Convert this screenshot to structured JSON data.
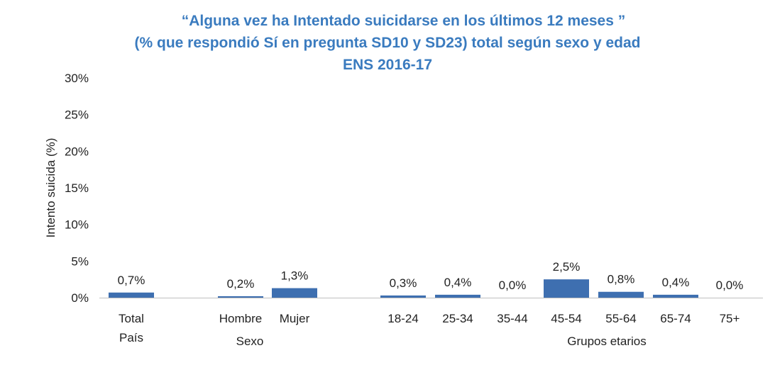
{
  "title_lines": [
    "“Alguna vez ha Intentado suicidarse en los últimos 12 meses ”",
    "(% que respondió Sí en pregunta SD10 y SD23) total según sexo y edad",
    "ENS  2016-17"
  ],
  "colors": {
    "bar": "#3e6fb0",
    "title": "#3a7bbf",
    "axis": "#bfbfbf"
  },
  "chart_data": {
    "type": "bar",
    "title": "“Alguna vez ha Intentado suicidarse en los últimos 12 meses ” (% que respondió Sí en pregunta SD10 y SD23) total según sexo y edad ENS  2016-17",
    "ylabel": "Intento suicida (%)",
    "ylim": [
      0,
      30
    ],
    "yticks": [
      "0%",
      "5%",
      "10%",
      "15%",
      "20%",
      "25%",
      "30%"
    ],
    "grid": false,
    "categories": [
      {
        "label": [
          "Total",
          "País"
        ],
        "value": 0.7,
        "value_label": "0,7%"
      },
      {
        "label": [
          "Hombre"
        ],
        "value": 0.2,
        "value_label": "0,2%"
      },
      {
        "label": [
          "Mujer"
        ],
        "value": 1.3,
        "value_label": "1,3%"
      },
      {
        "label": [
          "18-24"
        ],
        "value": 0.3,
        "value_label": "0,3%"
      },
      {
        "label": [
          "25-34"
        ],
        "value": 0.4,
        "value_label": "0,4%"
      },
      {
        "label": [
          "35-44"
        ],
        "value": 0.0,
        "value_label": "0,0%"
      },
      {
        "label": [
          "45-54"
        ],
        "value": 2.5,
        "value_label": "2,5%"
      },
      {
        "label": [
          "55-64"
        ],
        "value": 0.8,
        "value_label": "0,8%"
      },
      {
        "label": [
          "65-74"
        ],
        "value": 0.4,
        "value_label": "0,4%"
      },
      {
        "label": [
          "75+"
        ],
        "value": 0.0,
        "value_label": "0,0%"
      }
    ],
    "group_labels": [
      "Sexo",
      "Grupos etarios"
    ]
  }
}
